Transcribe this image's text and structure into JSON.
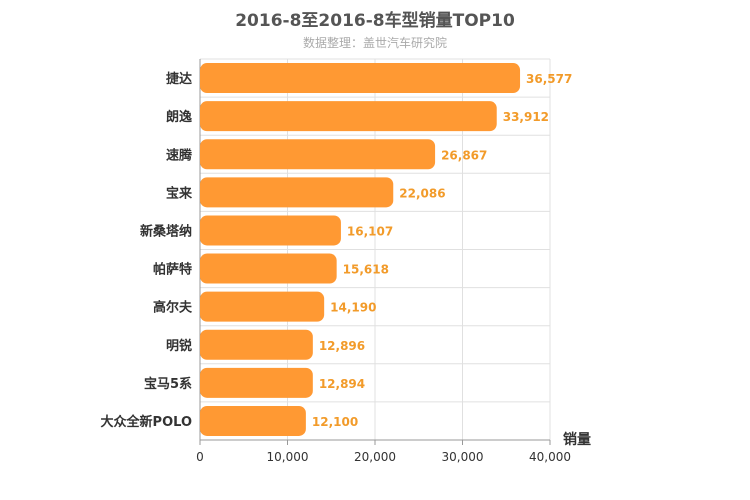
{
  "chart_data": {
    "type": "bar",
    "orientation": "horizontal",
    "title": "2016-8至2016-8车型销量TOP10",
    "subtitle": "数据整理：盖世汽车研究院",
    "xlabel": "销量",
    "categories": [
      "捷达",
      "朗逸",
      "速腾",
      "宝来",
      "新桑塔纳",
      "帕萨特",
      "高尔夫",
      "明锐",
      "宝马5系",
      "大众全新POLO"
    ],
    "values": [
      36577,
      33912,
      26867,
      22086,
      16107,
      15618,
      14190,
      12896,
      12894,
      12100
    ],
    "value_labels": [
      "36,577",
      "33,912",
      "26,867",
      "22,086",
      "16,107",
      "15,618",
      "14,190",
      "12,896",
      "12,894",
      "12,100"
    ],
    "xlim": [
      0,
      40000
    ],
    "ticks": [
      0,
      10000,
      20000,
      30000,
      40000
    ],
    "tick_labels": [
      "0",
      "10,000",
      "20,000",
      "30,000",
      "40,000"
    ],
    "grid": true,
    "bar_color": "#ff9933",
    "label_color": "#f29b2a"
  }
}
